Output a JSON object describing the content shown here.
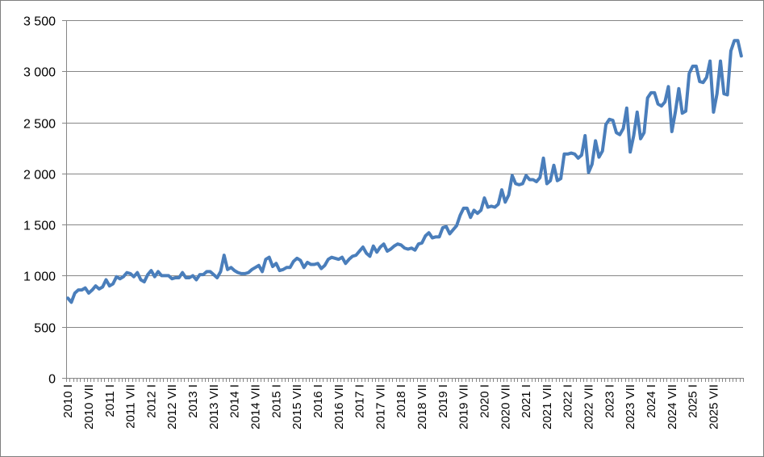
{
  "chart_data": {
    "type": "line",
    "title": "",
    "xlabel": "",
    "ylabel": "",
    "ylim": [
      0,
      3500
    ],
    "grid": true,
    "legend": "none",
    "series_color": "#4a7ebb",
    "y_ticks": [
      0,
      500,
      1000,
      1500,
      2000,
      2500,
      3000,
      3500
    ],
    "y_tick_labels": [
      "0",
      "500",
      "1 000",
      "1 500",
      "2 000",
      "2 500",
      "3 000",
      "3 500"
    ],
    "x_tick_labels": [
      "2010 I",
      "2010 VII",
      "2011 I",
      "2011 VII",
      "2012 I",
      "2012 VII",
      "2013 I",
      "2013 VII",
      "2014 I",
      "2014 VII",
      "2015 I",
      "2015 VII",
      "2016 I",
      "2016 VII",
      "2017 I",
      "2017 VII",
      "2018 I",
      "2018 VII",
      "2019 I",
      "2019 VII",
      "2020 I",
      "2020 VII",
      "2021 I",
      "2021 VII",
      "2022 I",
      "2022 VII",
      "2023 I",
      "2023 VII",
      "2024 I",
      "2024 VII",
      "2025 I",
      "2025 VII"
    ],
    "series": [
      {
        "values": [
          780,
          740,
          830,
          860,
          860,
          880,
          830,
          860,
          900,
          870,
          890,
          960,
          900,
          920,
          990,
          970,
          990,
          1030,
          1020,
          990,
          1030,
          960,
          940,
          1010,
          1050,
          990,
          1040,
          1000,
          1000,
          1000,
          970,
          980,
          980,
          1030,
          980,
          980,
          1000,
          960,
          1010,
          1010,
          1040,
          1040,
          1010,
          980,
          1040,
          1200,
          1060,
          1080,
          1050,
          1030,
          1020,
          1020,
          1030,
          1060,
          1080,
          1100,
          1040,
          1160,
          1180,
          1090,
          1120,
          1050,
          1060,
          1080,
          1080,
          1140,
          1170,
          1150,
          1080,
          1130,
          1110,
          1110,
          1120,
          1070,
          1100,
          1160,
          1180,
          1170,
          1160,
          1180,
          1120,
          1160,
          1190,
          1200,
          1240,
          1280,
          1220,
          1190,
          1290,
          1230,
          1280,
          1310,
          1240,
          1260,
          1290,
          1310,
          1300,
          1270,
          1260,
          1270,
          1250,
          1310,
          1320,
          1390,
          1420,
          1370,
          1380,
          1380,
          1470,
          1480,
          1410,
          1450,
          1490,
          1590,
          1660,
          1660,
          1570,
          1640,
          1610,
          1640,
          1760,
          1670,
          1680,
          1670,
          1700,
          1840,
          1720,
          1790,
          1980,
          1900,
          1890,
          1900,
          1980,
          1940,
          1940,
          1920,
          1960,
          2150,
          1900,
          1930,
          2080,
          1930,
          1950,
          2190,
          2190,
          2200,
          2190,
          2150,
          2180,
          2370,
          2010,
          2090,
          2320,
          2160,
          2220,
          2480,
          2530,
          2520,
          2400,
          2380,
          2440,
          2640,
          2210,
          2370,
          2600,
          2340,
          2400,
          2740,
          2790,
          2790,
          2680,
          2660,
          2700,
          2850,
          2410,
          2600,
          2830,
          2590,
          2610,
          2980,
          3050,
          3050,
          2900,
          2890,
          2940,
          3100,
          2600,
          2780,
          3100,
          2780,
          2770,
          3200,
          3300,
          3300,
          3150
        ]
      }
    ]
  }
}
